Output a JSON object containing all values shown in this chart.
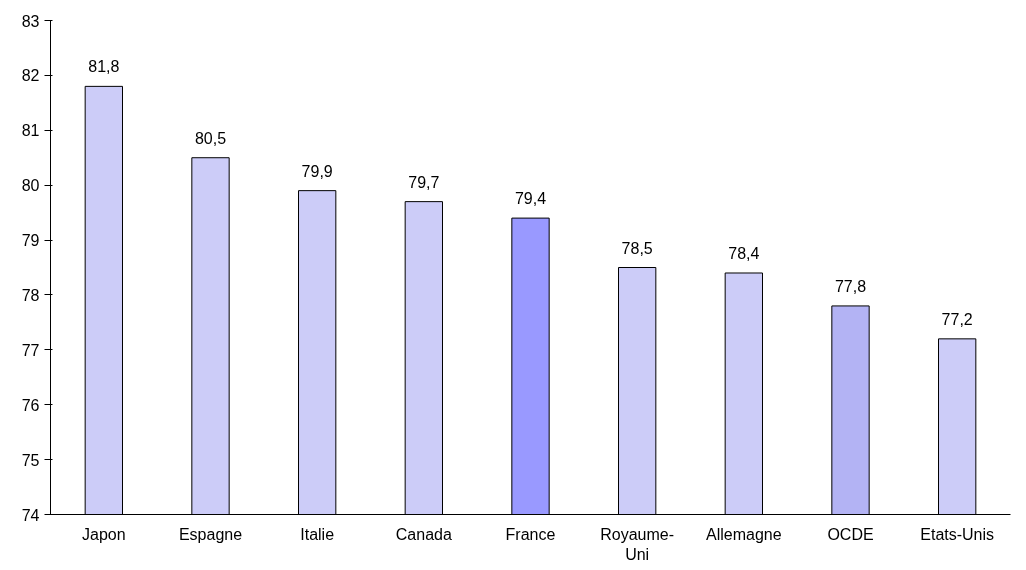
{
  "chart_data": {
    "type": "bar",
    "categories": [
      "Japon",
      "Espagne",
      "Italie",
      "Canada",
      "France",
      "Royaume-Uni",
      "Allemagne",
      "OCDE",
      "Etats-Unis"
    ],
    "values": [
      81.8,
      80.5,
      79.9,
      79.7,
      79.4,
      78.5,
      78.4,
      77.8,
      77.2
    ],
    "value_labels": [
      "81,8",
      "80,5",
      "79,9",
      "79,7",
      "79,4",
      "78,5",
      "78,4",
      "77,8",
      "77,2"
    ],
    "colors": [
      "#ccccf8",
      "#ccccf8",
      "#ccccf8",
      "#ccccf8",
      "#9999ff",
      "#ccccf8",
      "#ccccf8",
      "#b3b3f4",
      "#ccccf8"
    ],
    "ylim": [
      74,
      83
    ],
    "yticks": [
      74,
      75,
      76,
      77,
      78,
      79,
      80,
      81,
      82,
      83
    ],
    "grid": false
  }
}
